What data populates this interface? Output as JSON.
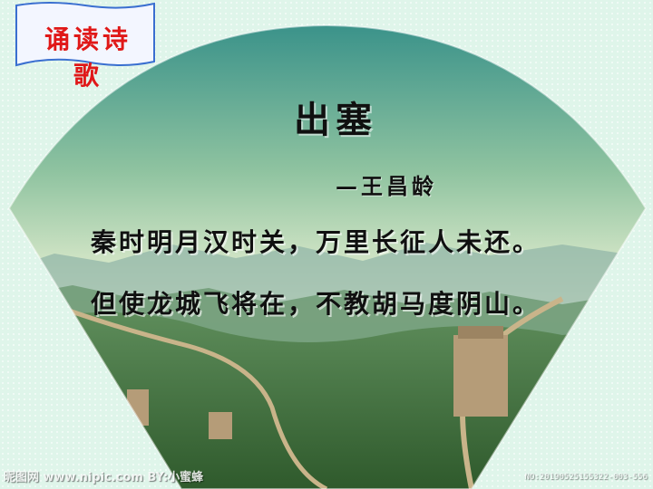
{
  "section_label": "诵读诗歌",
  "poem": {
    "title": "出塞",
    "author": "—王昌龄",
    "lines": [
      "秦时明月汉时关，万里长征人未还。",
      "但使龙城飞将在，不教胡马度阴山。"
    ]
  },
  "watermark": {
    "left": "昵图网 www.nipic.com  BY:小蜜蜂",
    "right": "NO:20190525155322-003-556"
  },
  "colors": {
    "label_text": "#e01818",
    "label_border": "#3a6fd0",
    "sky_top": "#2f8d86",
    "sky_bottom": "#e6f0d0",
    "mountain": "#3f6f3a"
  }
}
